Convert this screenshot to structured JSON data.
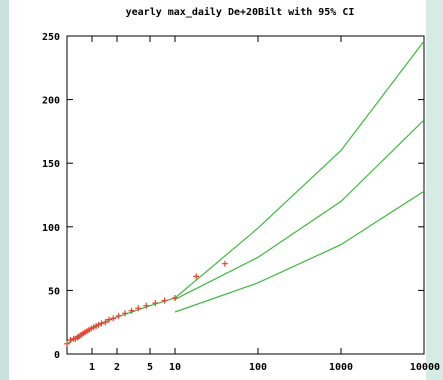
{
  "chart_data": {
    "type": "scatter",
    "title": "yearly max_daily De+20Bilt with 95% CI",
    "xlabel": "",
    "ylabel": "",
    "x_scale": "log",
    "xlim": [
      0.5,
      10000
    ],
    "ylim": [
      0,
      250
    ],
    "x_ticks": [
      1,
      2,
      5,
      10,
      100,
      1000,
      10000
    ],
    "x_tick_labels": [
      "1",
      "2",
      "5",
      "10",
      "100",
      "1000",
      "10000"
    ],
    "y_ticks": [
      0,
      50,
      100,
      150,
      200,
      250
    ],
    "y_tick_labels": [
      "0",
      "50",
      "100",
      "150",
      "200",
      "250"
    ],
    "grid": false,
    "series": [
      {
        "type": "scatter",
        "color": "#e8412f",
        "marker": "+",
        "points": [
          [
            0.5,
            8
          ],
          [
            0.55,
            11
          ],
          [
            0.6,
            12
          ],
          [
            0.63,
            12
          ],
          [
            0.67,
            13
          ],
          [
            0.7,
            14
          ],
          [
            0.74,
            15
          ],
          [
            0.78,
            16
          ],
          [
            0.82,
            17
          ],
          [
            0.87,
            18
          ],
          [
            0.92,
            19
          ],
          [
            0.98,
            20
          ],
          [
            1.05,
            21
          ],
          [
            1.12,
            22
          ],
          [
            1.2,
            23
          ],
          [
            1.3,
            24
          ],
          [
            1.45,
            25
          ],
          [
            1.6,
            27
          ],
          [
            1.8,
            28
          ],
          [
            2.1,
            30
          ],
          [
            2.5,
            32
          ],
          [
            3.0,
            34
          ],
          [
            3.6,
            36
          ],
          [
            4.5,
            38
          ],
          [
            5.8,
            40
          ],
          [
            7.5,
            42
          ],
          [
            10,
            44
          ],
          [
            18,
            61
          ],
          [
            40,
            71
          ]
        ]
      },
      {
        "type": "line",
        "color": "#3dbb3d",
        "points": [
          [
            0.5,
            8
          ],
          [
            1,
            21
          ],
          [
            2,
            29
          ],
          [
            5,
            38
          ],
          [
            10,
            44
          ],
          [
            100,
            99
          ],
          [
            1000,
            160
          ],
          [
            10000,
            246
          ]
        ]
      },
      {
        "type": "line",
        "color": "#3dbb3d",
        "points": [
          [
            10,
            43
          ],
          [
            100,
            76
          ],
          [
            1000,
            120
          ],
          [
            10000,
            184
          ]
        ]
      },
      {
        "type": "line",
        "color": "#3dbb3d",
        "points": [
          [
            10,
            33
          ],
          [
            100,
            56
          ],
          [
            1000,
            86
          ],
          [
            10000,
            128
          ]
        ]
      }
    ]
  }
}
